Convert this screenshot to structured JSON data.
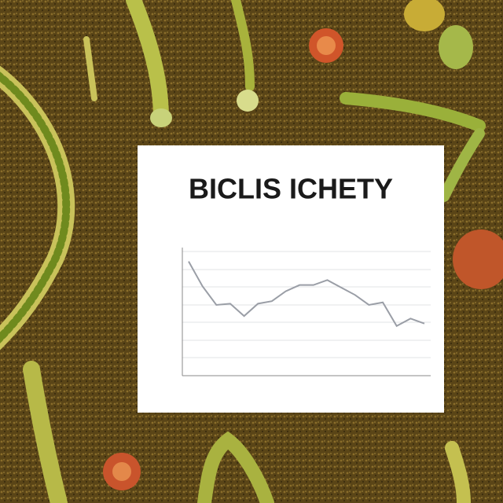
{
  "chart_data": {
    "type": "line",
    "title": "BICLIS ICHETY",
    "values": [
      92,
      72,
      57,
      58,
      48,
      58,
      60,
      68,
      73,
      73,
      77,
      71,
      65,
      57,
      59,
      40,
      46,
      42
    ],
    "color": "#9a9ea6",
    "ylim": [
      0,
      100
    ]
  }
}
